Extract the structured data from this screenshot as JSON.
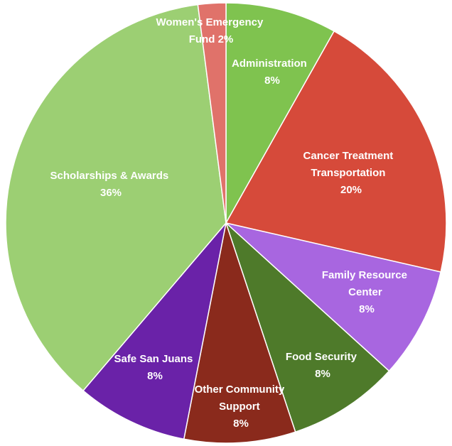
{
  "chart_data": {
    "type": "pie",
    "title": "",
    "slices": [
      {
        "label": "Administration",
        "pct_text": "8%",
        "value": 8,
        "color": "#7fc34f"
      },
      {
        "label": "Cancer Treatment Transportation",
        "pct_text": "20%",
        "value": 20,
        "color": "#d64a3a"
      },
      {
        "label": "Family Resource Center",
        "pct_text": "8%",
        "value": 8,
        "color": "#a866e0"
      },
      {
        "label": "Food Security",
        "pct_text": "8%",
        "value": 8,
        "color": "#4e7a2a"
      },
      {
        "label": "Other Community Support",
        "pct_text": "8%",
        "value": 8,
        "color": "#8a2a1c"
      },
      {
        "label": "Safe San Juans",
        "pct_text": "8%",
        "value": 8,
        "color": "#6a22a8"
      },
      {
        "label": "Scholarships & Awards",
        "pct_text": "36%",
        "value": 36,
        "color": "#9ccf73"
      },
      {
        "label": "Women's Emergency Fund",
        "pct_text": "2%",
        "value": 2,
        "color": "#e0726a"
      }
    ]
  }
}
